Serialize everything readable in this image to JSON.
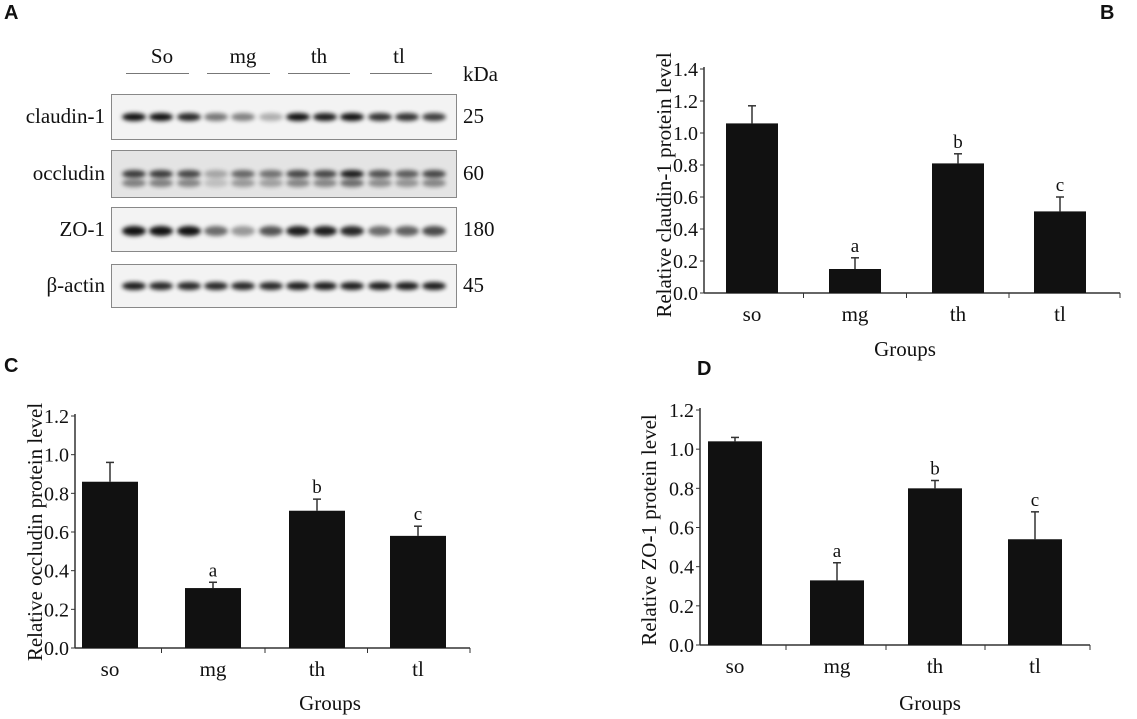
{
  "panel_a": {
    "letter": "A",
    "groups": [
      "So",
      "mg",
      "th",
      "tl"
    ],
    "kda_label": "kDa",
    "proteins": [
      {
        "name": "claudin-1",
        "kda": "25"
      },
      {
        "name": "occludin",
        "kda": "60"
      },
      {
        "name": "ZO-1",
        "kda": "180"
      },
      {
        "name": "β-actin",
        "kda": "45"
      }
    ]
  },
  "chart_data": [
    {
      "letter": "B",
      "type": "bar",
      "categories": [
        "so",
        "mg",
        "th",
        "tl"
      ],
      "values": [
        1.06,
        0.15,
        0.81,
        0.51
      ],
      "error": [
        0.11,
        0.07,
        0.06,
        0.09
      ],
      "annotations": [
        "",
        "a",
        "b",
        "c"
      ],
      "xlabel": "Groups",
      "ylabel": "Relative claudin-1 protein level",
      "ylim": [
        0,
        1.4
      ],
      "yticks": [
        "0.0",
        "0.2",
        "0.4",
        "0.6",
        "0.8",
        "1.0",
        "1.2",
        "1.4"
      ]
    },
    {
      "letter": "C",
      "type": "bar",
      "categories": [
        "so",
        "mg",
        "th",
        "tl"
      ],
      "values": [
        0.86,
        0.31,
        0.71,
        0.58
      ],
      "error": [
        0.1,
        0.03,
        0.06,
        0.05
      ],
      "annotations": [
        "",
        "a",
        "b",
        "c"
      ],
      "xlabel": "Groups",
      "ylabel": "Relative occludin protein level",
      "ylim": [
        0,
        1.2
      ],
      "yticks": [
        "0.0",
        "0.2",
        "0.4",
        "0.6",
        "0.8",
        "1.0",
        "1.2"
      ]
    },
    {
      "letter": "D",
      "type": "bar",
      "categories": [
        "so",
        "mg",
        "th",
        "tl"
      ],
      "values": [
        1.04,
        0.33,
        0.8,
        0.54
      ],
      "error": [
        0.02,
        0.09,
        0.04,
        0.14
      ],
      "annotations": [
        "",
        "a",
        "b",
        "c"
      ],
      "xlabel": "Groups",
      "ylabel": "Relative ZO-1 protein level",
      "ylim": [
        0,
        1.2
      ],
      "yticks": [
        "0.0",
        "0.2",
        "0.4",
        "0.6",
        "0.8",
        "1.0",
        "1.2"
      ]
    }
  ]
}
